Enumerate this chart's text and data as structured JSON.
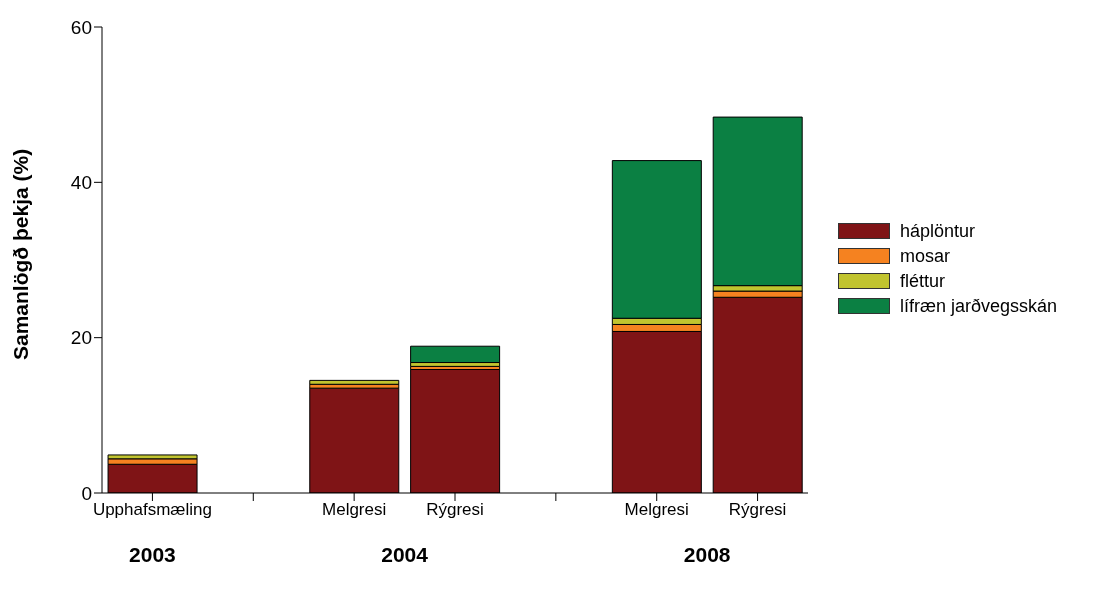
{
  "chart_data": {
    "type": "bar",
    "stacked": true,
    "ylabel": "Samanlögð þekja (%)",
    "categories": [
      "Upphafsmæling",
      null,
      "Melgresi",
      "Rýgresi",
      null,
      "Melgresi",
      "Rýgresi"
    ],
    "series": [
      {
        "name": "háplöntur",
        "color": "#7f1416",
        "values": [
          3.7,
          null,
          13.5,
          15.9,
          null,
          20.8,
          25.2
        ]
      },
      {
        "name": "mosar",
        "color": "#f58220",
        "values": [
          0.7,
          null,
          0.5,
          0.4,
          null,
          0.9,
          0.8
        ]
      },
      {
        "name": "fléttur",
        "color": "#c1c42f",
        "values": [
          0.5,
          null,
          0.5,
          0.5,
          null,
          0.8,
          0.7
        ]
      },
      {
        "name": "lífræn jarðvegsskán",
        "color": "#0b8043",
        "values": [
          0,
          null,
          0,
          2.1,
          null,
          20.3,
          21.7
        ]
      }
    ],
    "annotations": [
      "2003",
      "2004",
      "2008"
    ],
    "ylim": [
      0,
      60
    ],
    "yticks": [
      0,
      20,
      40,
      60
    ],
    "grid": false,
    "legend": "right"
  }
}
